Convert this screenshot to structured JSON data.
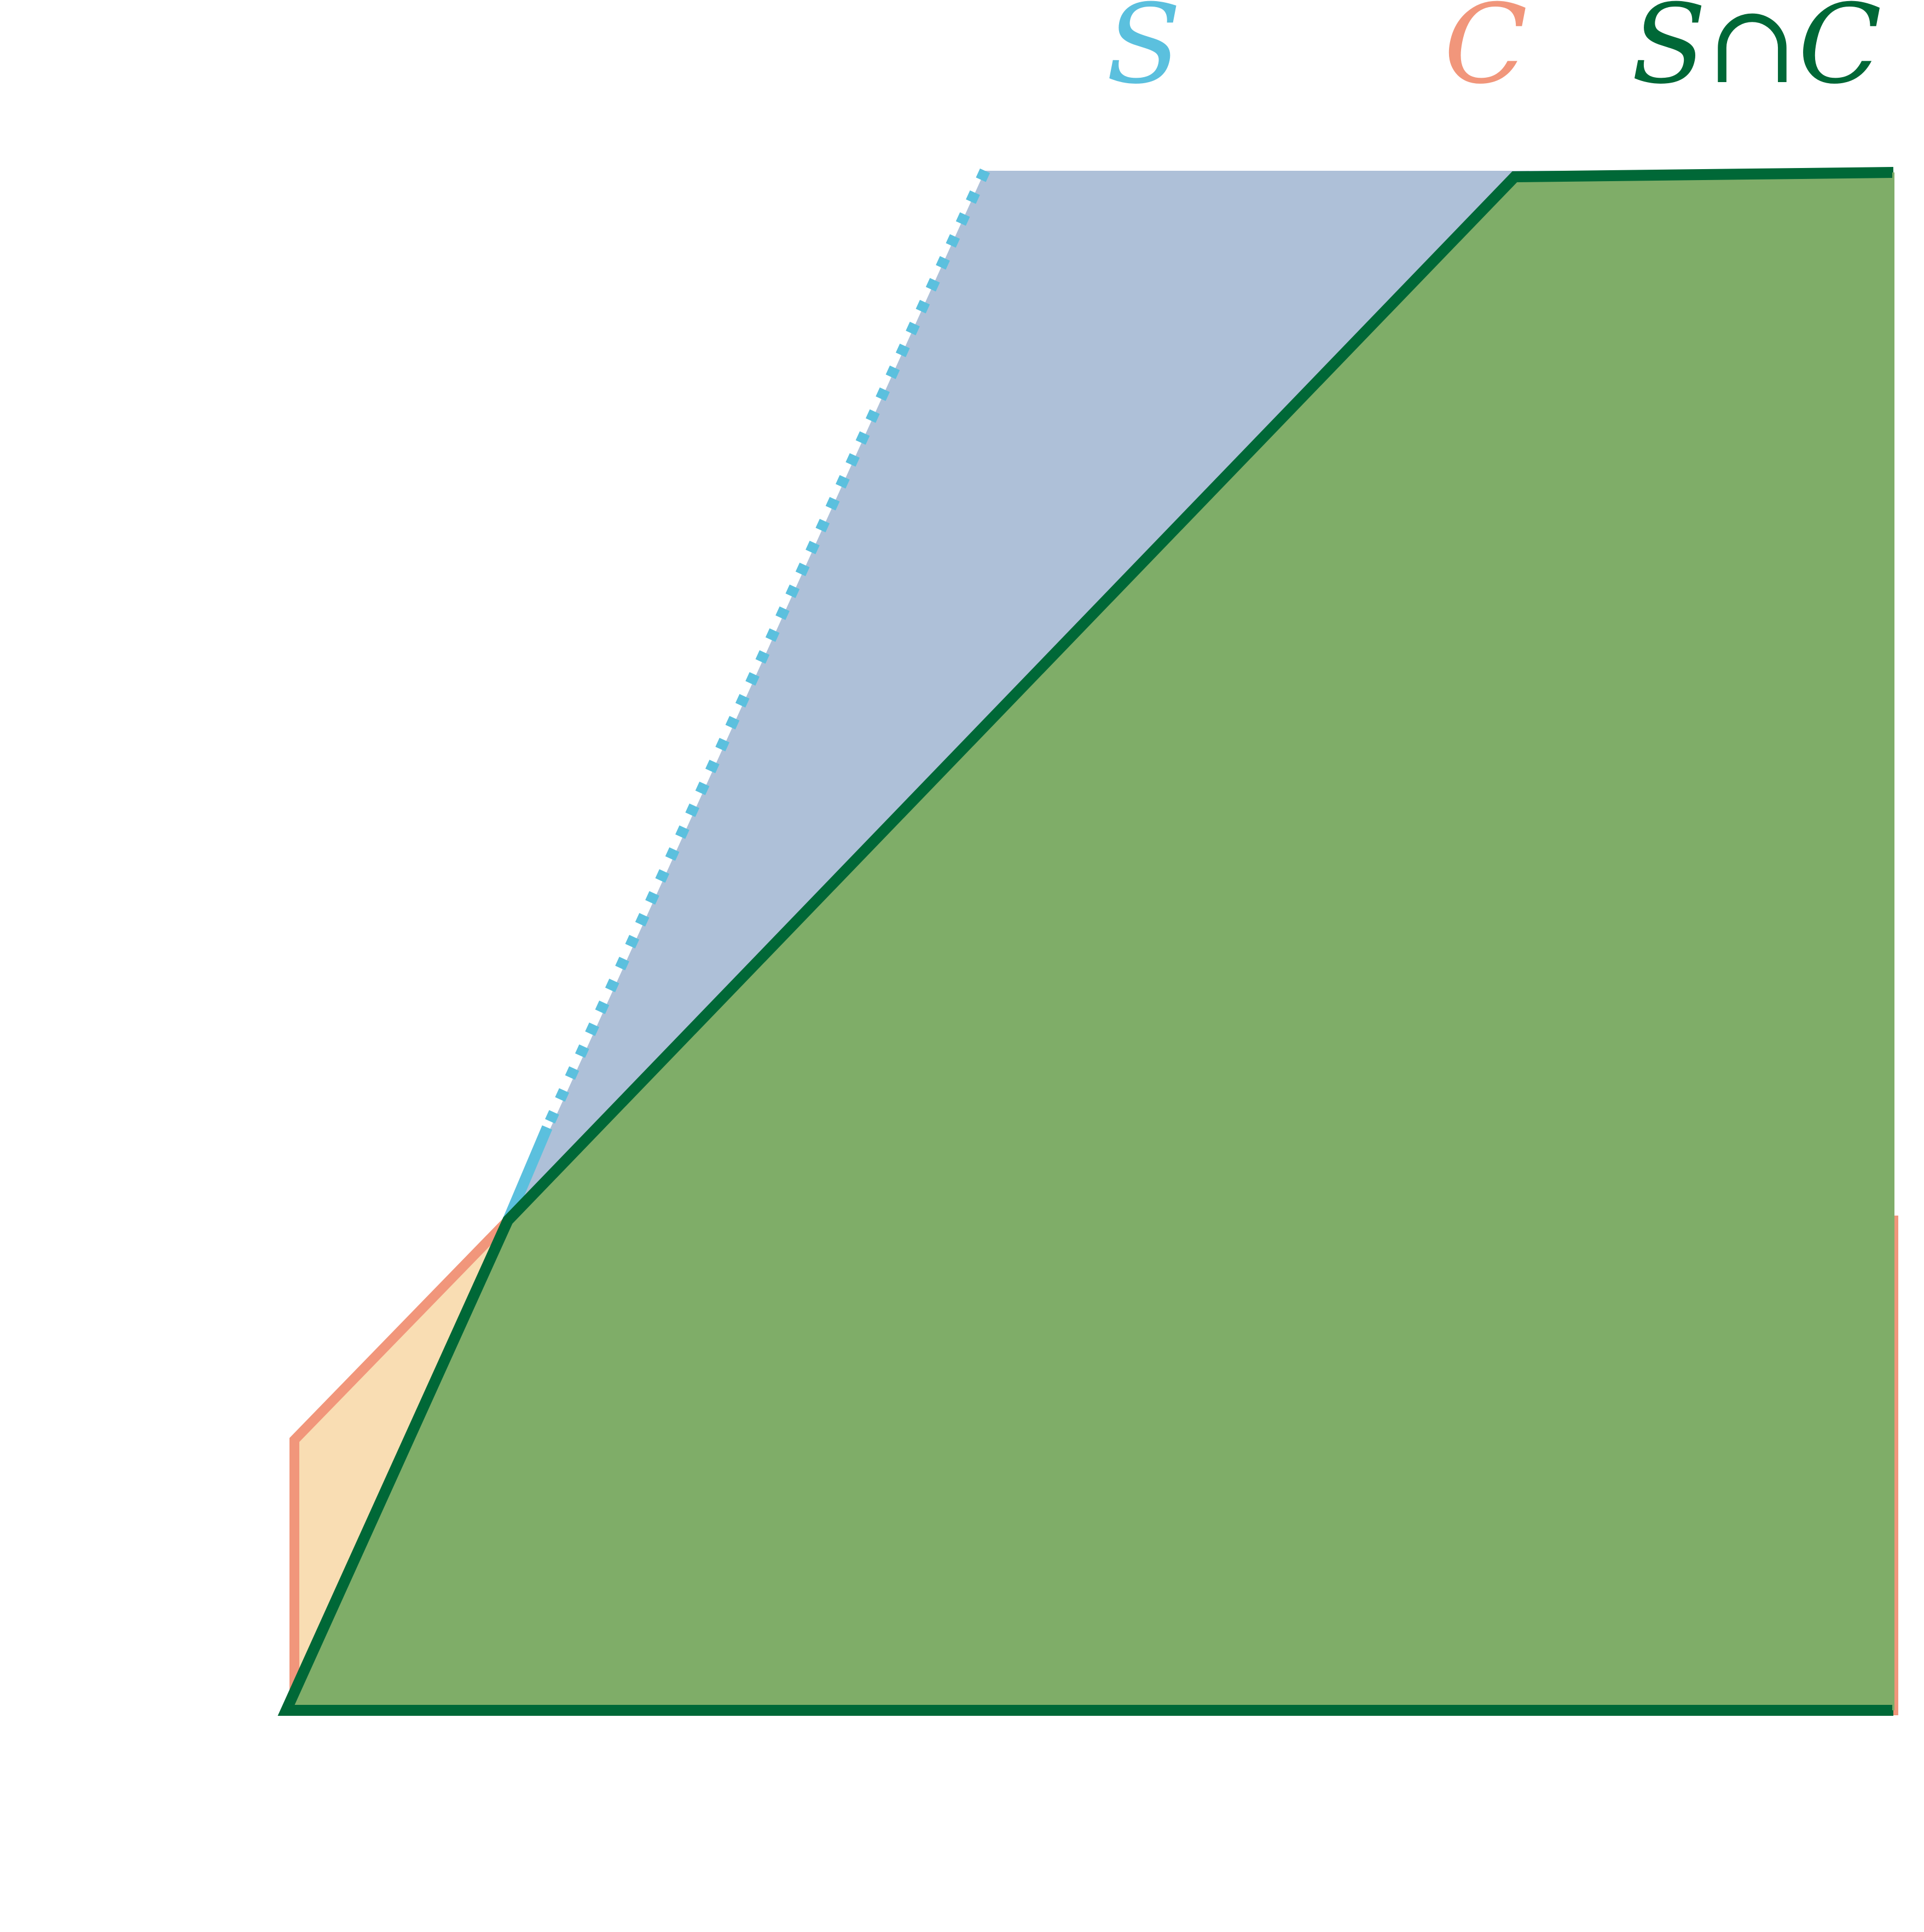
{
  "legend": {
    "s_label": "S",
    "c_label": "C",
    "intersection_label": "S∩C"
  },
  "colors": {
    "s_edge": "#5bc0de",
    "s_fill": "#aec0d8",
    "c_edge": "#f1967b",
    "c_fill": "#f9ddb3",
    "intersection_edge": "#006837",
    "intersection_fill": "#7fad68",
    "background": "#ffffff"
  }
}
